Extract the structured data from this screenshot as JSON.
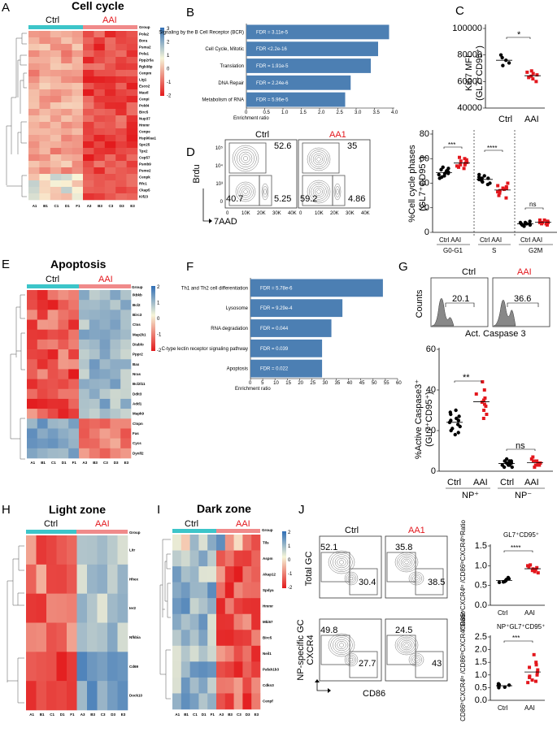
{
  "panels": {
    "A": "A",
    "B": "B",
    "C": "C",
    "D": "D",
    "E": "E",
    "F": "F",
    "G": "G",
    "H": "H",
    "I": "I",
    "J": "J"
  },
  "panelA": {
    "title": "Cell cycle",
    "ctrl": "Ctrl",
    "aai": "AAI",
    "group": "Group",
    "scale": [
      "3",
      "2",
      "1",
      "0",
      "-1",
      "-2"
    ],
    "genes": [
      "Pola2",
      "Bora",
      "Psma2",
      "Pola1",
      "Ppp2r5a",
      "Rgb38p",
      "Cenpm",
      "Lig1",
      "Esco2",
      "Mastl",
      "Cenpi",
      "Pold4",
      "Birc5",
      "Nup37",
      "Hmmr",
      "Cenpe",
      "Hsp90aa1",
      "Spc25",
      "Tpx2",
      "Cep57",
      "Psmb9",
      "Psme2",
      "Cenpk",
      "Rfc1",
      "Ckap5",
      "Kif23"
    ],
    "samples": [
      "A1",
      "B1",
      "C1",
      "D1",
      "F1",
      "A3",
      "B3",
      "C3",
      "D3",
      "E3"
    ]
  },
  "panelB": {
    "xlabel": "Enrichment ratio",
    "ticks": [
      "0",
      "0.5",
      "1.0",
      "1.5",
      "2.0",
      "2.5",
      "3.0",
      "3.5",
      "4.0"
    ],
    "terms": [
      "Signaling by the B Cell Receptor (BCR)",
      "Cell Cycle, Mitotic",
      "Translation",
      "DNA Repair",
      "Metabolism of RNA"
    ],
    "fdr": [
      "FDR = 3.11e-5",
      "FDR <2.2e-16",
      "FDR = 1.91e-5",
      "FDR = 2.24e-6",
      "FDR = 5.96e-5"
    ]
  },
  "panelC": {
    "ylabel_top": "Ki67 MFI",
    "ylabel_sub": "(GL7⁺CD95⁺)",
    "yticks": [
      "100000",
      "80000",
      "60000",
      "40000"
    ],
    "cats": [
      "Ctrl",
      "AAI"
    ],
    "sig": "*"
  },
  "panelD": {
    "ctrl_title": "Ctrl",
    "aai_title": "AA1",
    "ylabel": "Brdu",
    "xlabel": "7AAD",
    "ctrl_vals": [
      "52.6",
      "40.7",
      "5.25"
    ],
    "aai_vals": [
      "35",
      "59.2",
      "4.86"
    ],
    "xticks": [
      "0",
      "10K",
      "20K",
      "30K",
      "40K"
    ],
    "yticks": [
      "10⁵",
      "10⁴",
      "10³",
      "0"
    ],
    "xticks2": [
      "0",
      "10K",
      "20K",
      "30K",
      "40K"
    ]
  },
  "panelDplot": {
    "ylabel_top": "%Cell cycle phases",
    "ylabel_sub": "(GL7⁺CD95⁺)",
    "yticks": [
      "80",
      "60",
      "40",
      "20",
      "0"
    ],
    "pairs": [
      "Ctrl AAI",
      "Ctrl AAI",
      "Ctrl AAI"
    ],
    "phases": [
      "G0-G1",
      "S",
      "G2M"
    ],
    "sig": [
      "***",
      "****",
      "ns"
    ]
  },
  "panelE": {
    "title": "Apoptosis",
    "ctrl": "Ctrl",
    "aai": "AAI",
    "group": "Group",
    "scale": [
      "2",
      "1",
      "0",
      "-1",
      "-2"
    ],
    "genes": [
      "Ikbkb",
      "Bcl2",
      "Birc3",
      "Ctss",
      "Map2k1",
      "Diablo",
      "Pppr2",
      "Bax",
      "Nras",
      "Bcl2l11",
      "Ddit3",
      "Add1",
      "Mapk9",
      "Ctspn",
      "Fas",
      "Cycs",
      "Dynll2"
    ],
    "samples": [
      "A1",
      "B1",
      "C1",
      "D1",
      "F1",
      "A3",
      "B3",
      "C3",
      "D3",
      "E3"
    ]
  },
  "panelF": {
    "xlabel": "Enrichment ratio",
    "ticks": [
      "0",
      "5",
      "10",
      "15",
      "20",
      "25",
      "30",
      "35",
      "40",
      "45",
      "50",
      "55",
      "60"
    ],
    "terms": [
      "Th1 and Th2 cell differentiation",
      "Lysosome",
      "RNA degradation",
      "C-type lectin receptor signaling pathway",
      "Apoptosis"
    ],
    "fdr": [
      "FDR = 5.78e-6",
      "FDR = 9.29e-4",
      "FDR = 0.044",
      "FDR = 0.039",
      "FDR = 0.022"
    ]
  },
  "panelG": {
    "ctrl_title": "Ctrl",
    "aai_title": "AAI",
    "ylabel": "Counts",
    "xlabel": "Act. Caspase 3",
    "ctrl_val": "20.1",
    "aai_val": "36.6",
    "ylabel_top": "%Active Caspase3⁺",
    "ylabel_sub": "(GL7⁺CD95⁺)",
    "yticks": [
      "60",
      "40",
      "20",
      "0"
    ],
    "cats": [
      "Ctrl",
      "AAI",
      "Ctrl",
      "AAI"
    ],
    "groups": [
      "NP⁺",
      "NP⁻"
    ],
    "sig": [
      "**",
      "ns"
    ]
  },
  "panelH": {
    "title": "Light zone",
    "ctrl": "Ctrl",
    "aai": "AAI",
    "group": "Group",
    "genes": [
      "Litr",
      "Hhex",
      "Ier2",
      "Nfkbia",
      "Cd69",
      "Dock10"
    ],
    "samples": [
      "A1",
      "B1",
      "C1",
      "D1",
      "F1",
      "A3",
      "B3",
      "C3",
      "D3",
      "E3"
    ]
  },
  "panelI": {
    "title": "Dark zone",
    "ctrl": "Ctrl",
    "aai": "AAI",
    "group": "Group",
    "scale": [
      "2",
      "1",
      "0",
      "-1",
      "-2"
    ],
    "genes": [
      "Tils",
      "Aspm",
      "Akap12",
      "Spdya",
      "Hmmr",
      "Mki67",
      "Birc5",
      "Neil1",
      "Pafah1b3",
      "Cdkn3",
      "Cenpf"
    ],
    "samples": [
      "A1",
      "B1",
      "C1",
      "D1",
      "F1",
      "A3",
      "B3",
      "C3",
      "D3",
      "E3"
    ]
  },
  "panelJ": {
    "ctrl_title": "Ctrl",
    "aai_title": "AA1",
    "row1": "Total GC",
    "row2": "NP-specific GC",
    "ylabel": "CXCR4",
    "xlabel": "CD86",
    "total_ctrl": [
      "52.1",
      "30.4"
    ],
    "total_aai": [
      "35.8",
      "38.5"
    ],
    "np_ctrl": [
      "49.8",
      "27.7"
    ],
    "np_aai": [
      "24.5",
      "43"
    ],
    "ratio_label": "CD86ʰⁱCXCR4ˡᵒ /CD86ˡᵒCXCR4ʰⁱRatio",
    "plot1_title": "GL7⁺CD95⁺",
    "plot2_title": "NP⁺GL7⁺CD95⁺",
    "plot1_yticks": [
      "1.5",
      "1.0",
      "0.5",
      "0.0"
    ],
    "plot2_yticks": [
      "2.5",
      "2.0",
      "1.5",
      "1.0",
      "0.5",
      "0.0"
    ],
    "cats": [
      "Ctrl",
      "AAI"
    ],
    "sig": [
      "****",
      "***"
    ]
  },
  "colors": {
    "ctrl": "#3cc5c9",
    "aai": "#f08a8a",
    "bar": "#4c7fb3",
    "red": "#e3171d"
  },
  "chart_data": [
    {
      "type": "bar",
      "panel": "B",
      "categories": [
        "Signaling by the B Cell Receptor (BCR)",
        "Cell Cycle, Mitotic",
        "Translation",
        "DNA Repair",
        "Metabolism of RNA"
      ],
      "values": [
        3.9,
        3.6,
        3.4,
        2.85,
        2.7
      ],
      "xlabel": "Enrichment ratio",
      "xlim": [
        0,
        4
      ]
    },
    {
      "type": "bar",
      "panel": "F",
      "categories": [
        "Th1 and Th2 cell differentiation",
        "Lysosome",
        "RNA degradation",
        "C-type lectin receptor signaling pathway",
        "Apoptosis"
      ],
      "values": [
        54,
        37.5,
        33,
        29.2,
        29.2
      ],
      "xlabel": "Enrichment ratio",
      "xlim": [
        0,
        60
      ]
    },
    {
      "type": "scatter",
      "panel": "C",
      "ylabel": "Ki67 MFI (GL7+CD95+)",
      "ylim": [
        40000,
        100000
      ],
      "series": [
        {
          "name": "Ctrl",
          "values": [
            78000,
            80000,
            74000,
            72000,
            76000
          ]
        },
        {
          "name": "AAI",
          "values": [
            68000,
            65000,
            62000,
            60000,
            66000,
            64000,
            67000,
            63000
          ]
        }
      ]
    },
    {
      "type": "scatter",
      "panel": "D",
      "ylabel": "%Cell cycle phases (GL7+CD95+)",
      "ylim": [
        0,
        80
      ],
      "series": [
        {
          "name": "G0-G1 Ctrl",
          "values": [
            50,
            48,
            52,
            46,
            44,
            49,
            51,
            47,
            53,
            45,
            50,
            48
          ]
        },
        {
          "name": "G0-G1 AAI",
          "values": [
            55,
            58,
            52,
            60,
            54,
            57,
            56,
            59,
            53,
            61,
            55,
            57
          ]
        },
        {
          "name": "S Ctrl",
          "values": [
            44,
            42,
            46,
            40,
            45,
            43,
            41,
            39,
            47,
            44
          ]
        },
        {
          "name": "S AAI",
          "values": [
            36,
            38,
            34,
            30,
            40,
            33,
            37,
            35,
            28,
            32,
            36
          ]
        },
        {
          "name": "G2M Ctrl",
          "values": [
            7,
            6,
            8,
            5,
            9,
            7,
            6,
            8,
            7,
            6
          ]
        },
        {
          "name": "G2M AAI",
          "values": [
            8,
            7,
            9,
            10,
            6,
            8,
            9,
            7,
            8,
            10
          ]
        }
      ]
    },
    {
      "type": "scatter",
      "panel": "G",
      "ylabel": "%Active Caspase3+ (GL7+CD95+)",
      "ylim": [
        0,
        60
      ],
      "series": [
        {
          "name": "NP+ Ctrl",
          "values": [
            25,
            22,
            28,
            18,
            30,
            26,
            24,
            20,
            27,
            23,
            29,
            21,
            25,
            19
          ]
        },
        {
          "name": "NP+ AAI",
          "values": [
            32,
            36,
            28,
            40,
            34,
            30,
            44,
            38,
            26,
            33,
            35
          ]
        },
        {
          "name": "NP- Ctrl",
          "values": [
            4,
            3,
            5,
            2,
            6,
            4,
            3,
            5,
            4,
            3,
            2,
            5
          ]
        },
        {
          "name": "NP- AAI",
          "values": [
            4,
            5,
            3,
            6,
            2,
            4,
            5,
            3,
            7,
            4,
            3,
            5
          ]
        }
      ]
    },
    {
      "type": "scatter",
      "panel": "J1",
      "ylabel": "CD86hiCXCR4lo/CD86loCXCR4hi Ratio",
      "title": "GL7+CD95+",
      "ylim": [
        0,
        1.5
      ],
      "series": [
        {
          "name": "Ctrl",
          "values": [
            0.62,
            0.65,
            0.58,
            0.7,
            0.6,
            0.67,
            0.63,
            0.59
          ]
        },
        {
          "name": "AAI",
          "values": [
            0.85,
            0.92,
            0.95,
            1.0,
            0.88,
            0.82,
            0.97,
            1.02,
            0.9
          ]
        }
      ]
    },
    {
      "type": "scatter",
      "panel": "J2",
      "ylabel": "CD86hiCXCR4lo/CD86loCXCR4hi Ratio",
      "title": "NP+GL7+CD95+",
      "ylim": [
        0,
        2.5
      ],
      "series": [
        {
          "name": "Ctrl",
          "values": [
            0.55,
            0.62,
            0.5,
            0.58,
            0.65,
            0.52,
            0.6
          ]
        },
        {
          "name": "AAI",
          "values": [
            0.7,
            1.0,
            1.4,
            0.9,
            1.2,
            1.8,
            0.8,
            1.1,
            1.5,
            0.95,
            1.3,
            0.75
          ]
        }
      ]
    }
  ]
}
